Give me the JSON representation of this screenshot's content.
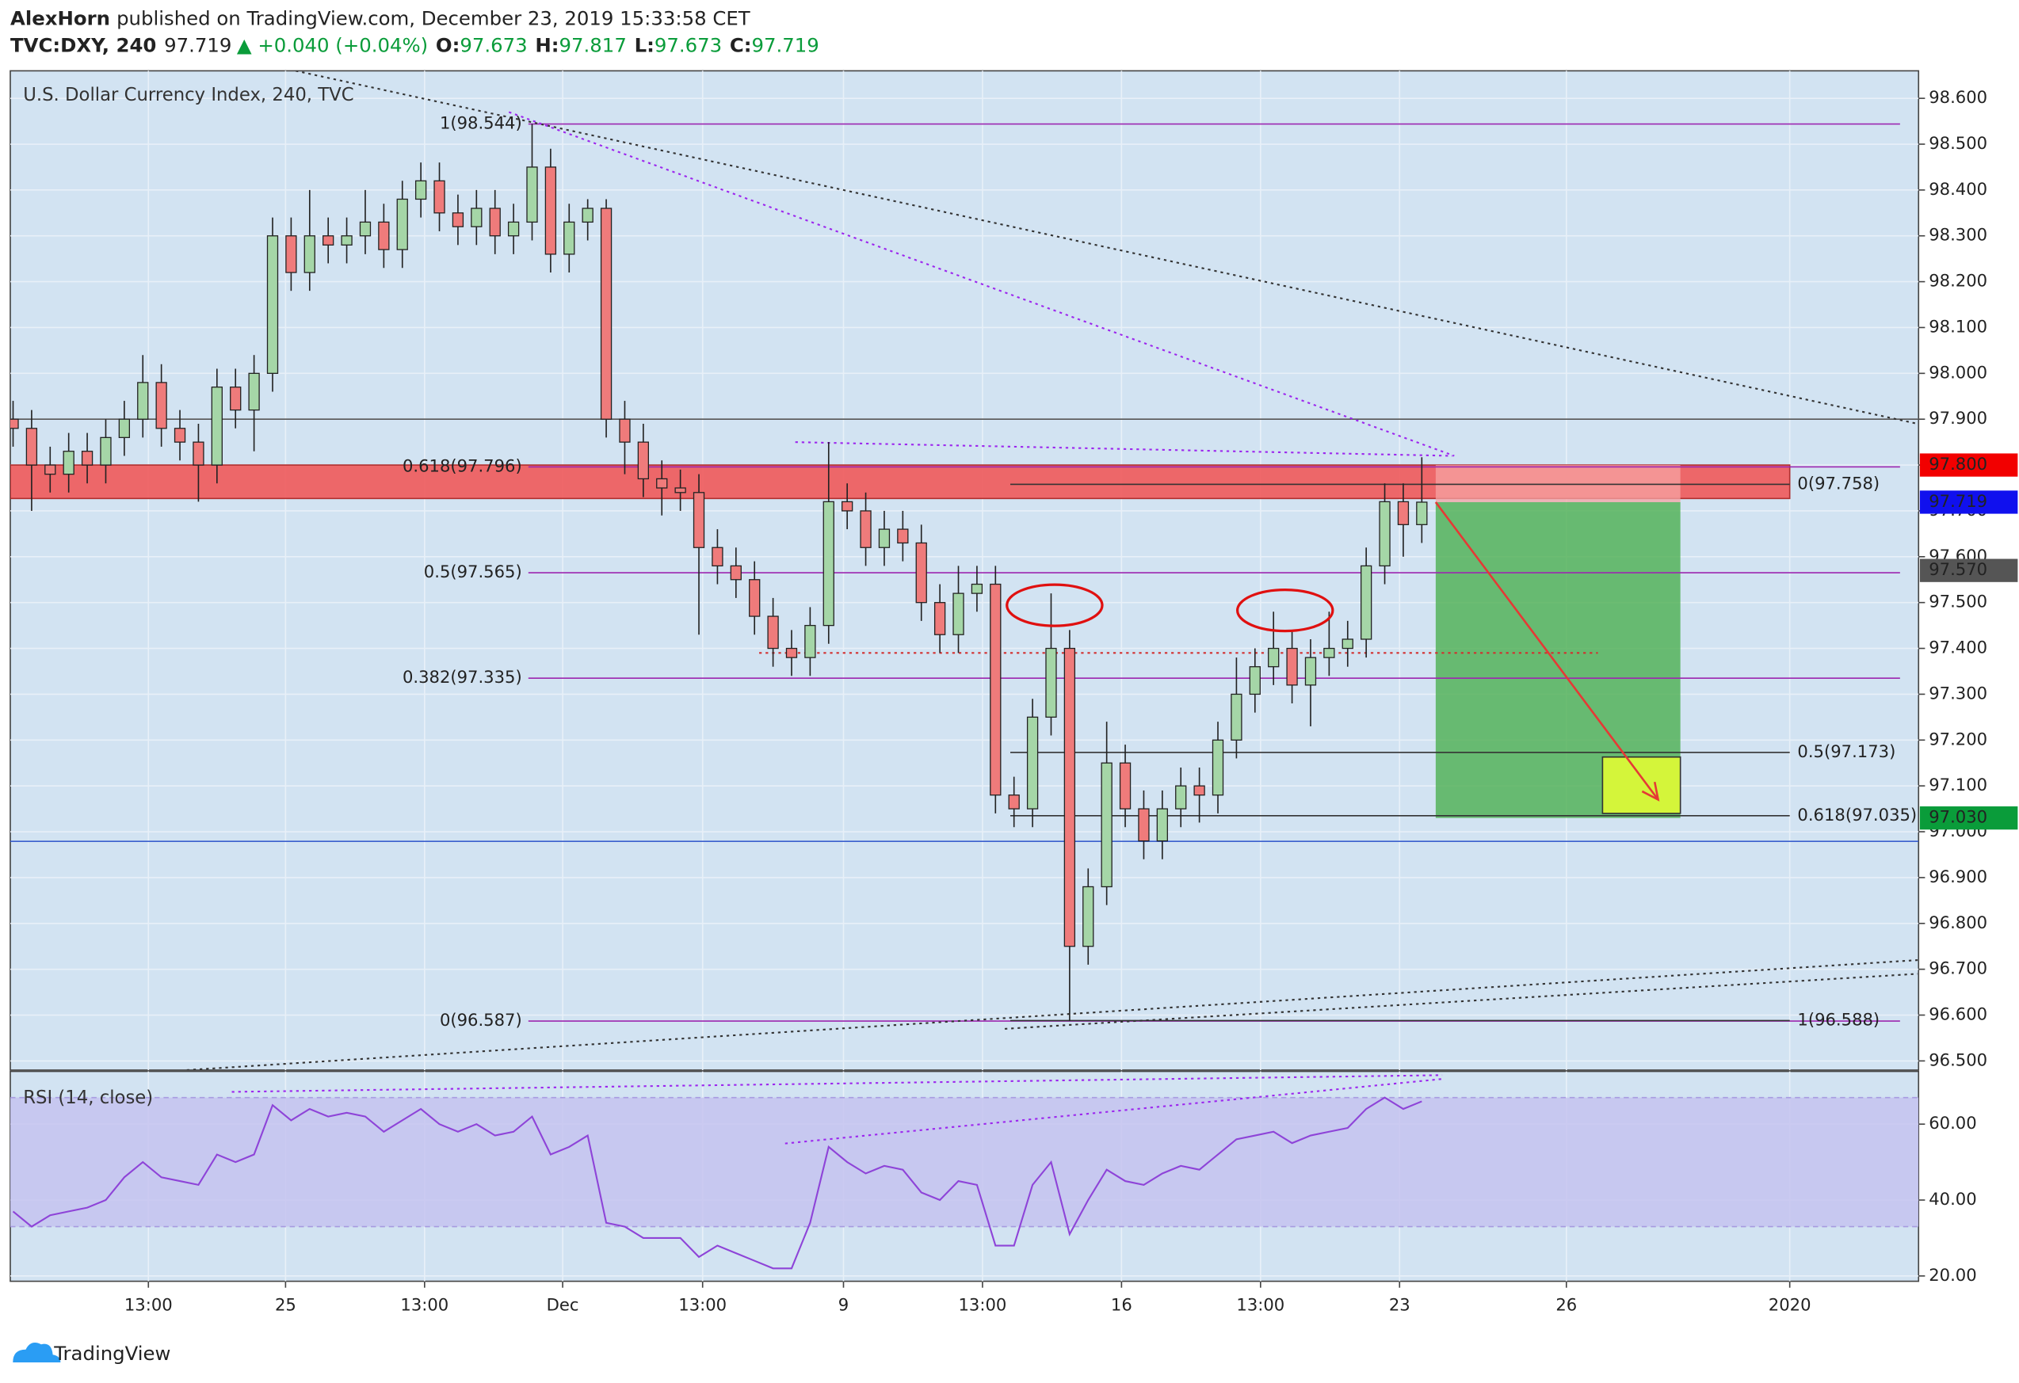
{
  "header": {
    "author": "AlexHorn",
    "published": "published on TradingView.com, December 23, 2019 15:33:58 CET",
    "symbol": "TVC:DXY, 240",
    "last": "97.719",
    "change": "▲ +0.040 (+0.04%)",
    "o_label": "O:",
    "o": "97.673",
    "h_label": "H:",
    "h": "97.817",
    "l_label": "L:",
    "l": "97.673",
    "c_label": "C:",
    "c": "97.719"
  },
  "footer": {
    "brand": "TradingView"
  },
  "chart_data": [
    {
      "type": "candlestick",
      "title": "U.S. Dollar Currency Index, 240, TVC",
      "x": [
        0,
        2,
        4,
        6,
        8,
        10,
        12,
        14,
        16,
        18,
        20,
        22,
        24,
        26,
        28,
        30,
        32,
        34,
        36,
        38,
        40,
        42,
        44,
        46,
        48,
        50,
        52,
        54,
        56,
        58,
        60,
        62,
        64,
        66,
        68,
        70,
        72,
        74,
        76,
        78,
        80,
        82,
        84,
        86,
        88,
        90,
        92,
        94,
        96,
        98,
        100,
        102,
        104,
        106,
        108,
        110,
        112,
        114,
        116,
        118,
        120,
        122,
        124,
        126,
        128,
        130,
        132,
        134,
        136,
        138,
        140,
        142,
        144,
        146,
        148,
        150,
        152
      ],
      "open": [
        97.9,
        97.88,
        97.8,
        97.78,
        97.83,
        97.8,
        97.86,
        97.9,
        97.98,
        97.88,
        97.85,
        97.8,
        97.97,
        97.92,
        98.0,
        98.3,
        98.22,
        98.3,
        98.28,
        98.3,
        98.33,
        98.27,
        98.38,
        98.42,
        98.35,
        98.32,
        98.36,
        98.3,
        98.33,
        98.45,
        98.26,
        98.33,
        98.36,
        97.9,
        97.85,
        97.77,
        97.75,
        97.74,
        97.62,
        97.58,
        97.55,
        97.47,
        97.4,
        97.38,
        97.45,
        97.72,
        97.7,
        97.62,
        97.66,
        97.63,
        97.5,
        97.43,
        97.52,
        97.54,
        97.08,
        97.05,
        97.25,
        97.4,
        96.75,
        96.88,
        97.15,
        97.05,
        96.98,
        97.05,
        97.1,
        97.08,
        97.2,
        97.3,
        97.36,
        97.4,
        97.32,
        97.38,
        97.4,
        97.42,
        97.58,
        97.72,
        97.67
      ],
      "high": [
        97.94,
        97.92,
        97.84,
        97.87,
        97.87,
        97.9,
        97.94,
        98.04,
        98.02,
        97.92,
        97.89,
        98.01,
        98.01,
        98.04,
        98.34,
        98.34,
        98.4,
        98.34,
        98.34,
        98.4,
        98.37,
        98.42,
        98.46,
        98.46,
        98.39,
        98.4,
        98.4,
        98.37,
        98.544,
        98.49,
        98.37,
        98.38,
        98.38,
        97.94,
        97.89,
        97.81,
        97.79,
        97.78,
        97.66,
        97.62,
        97.59,
        97.51,
        97.44,
        97.49,
        97.85,
        97.76,
        97.74,
        97.7,
        97.7,
        97.67,
        97.54,
        97.58,
        97.58,
        97.58,
        97.12,
        97.29,
        97.52,
        97.44,
        96.92,
        97.24,
        97.19,
        97.09,
        97.09,
        97.14,
        97.14,
        97.24,
        97.38,
        97.4,
        97.48,
        97.44,
        97.42,
        97.48,
        97.46,
        97.62,
        97.76,
        97.76,
        97.817
      ],
      "low": [
        97.84,
        97.7,
        97.74,
        97.74,
        97.76,
        97.76,
        97.82,
        97.86,
        97.84,
        97.81,
        97.72,
        97.76,
        97.88,
        97.83,
        97.96,
        98.18,
        98.18,
        98.24,
        98.24,
        98.26,
        98.23,
        98.23,
        98.34,
        98.31,
        98.28,
        98.28,
        98.26,
        98.26,
        98.29,
        98.22,
        98.22,
        98.29,
        97.86,
        97.78,
        97.73,
        97.69,
        97.7,
        97.43,
        97.54,
        97.51,
        97.43,
        97.36,
        97.34,
        97.34,
        97.41,
        97.66,
        97.58,
        97.58,
        97.59,
        97.46,
        97.39,
        97.39,
        97.48,
        97.04,
        97.01,
        97.01,
        97.21,
        96.588,
        96.71,
        96.84,
        97.01,
        96.94,
        96.94,
        97.01,
        97.02,
        97.04,
        97.16,
        97.26,
        97.32,
        97.28,
        97.23,
        97.34,
        97.36,
        97.38,
        97.54,
        97.6,
        97.63
      ],
      "close": [
        97.88,
        97.8,
        97.78,
        97.83,
        97.8,
        97.86,
        97.9,
        97.98,
        97.88,
        97.85,
        97.8,
        97.97,
        97.92,
        98.0,
        98.3,
        98.22,
        98.3,
        98.28,
        98.3,
        98.33,
        98.27,
        98.38,
        98.42,
        98.35,
        98.32,
        98.36,
        98.3,
        98.33,
        98.45,
        98.26,
        98.33,
        98.36,
        97.9,
        97.85,
        97.77,
        97.75,
        97.74,
        97.62,
        97.58,
        97.55,
        97.47,
        97.4,
        97.38,
        97.45,
        97.72,
        97.7,
        97.62,
        97.66,
        97.63,
        97.5,
        97.43,
        97.52,
        97.54,
        97.08,
        97.05,
        97.25,
        97.4,
        96.75,
        96.88,
        97.15,
        97.05,
        96.98,
        97.05,
        97.1,
        97.08,
        97.2,
        97.3,
        97.36,
        97.4,
        97.32,
        97.38,
        97.4,
        97.42,
        97.58,
        97.72,
        97.67,
        97.719
      ],
      "up_color": "#a5d6a7",
      "down_color": "#ef7b7b",
      "grid": true,
      "xlim": [
        -0.3,
        205.6
      ],
      "ylim": [
        96.48,
        98.66
      ],
      "xticks": [
        {
          "value": 14.6,
          "label": "13:00"
        },
        {
          "value": 29.4,
          "label": "25"
        },
        {
          "value": 44.4,
          "label": "13:00"
        },
        {
          "value": 59.3,
          "label": "Dec"
        },
        {
          "value": 74.4,
          "label": "13:00"
        },
        {
          "value": 89.6,
          "label": "9"
        },
        {
          "value": 104.6,
          "label": "13:00"
        },
        {
          "value": 119.6,
          "label": "16"
        },
        {
          "value": 134.6,
          "label": "13:00"
        },
        {
          "value": 149.6,
          "label": "23"
        },
        {
          "value": 167.6,
          "label": "26"
        },
        {
          "value": 191.7,
          "label": "2020"
        }
      ],
      "yticks": [
        {
          "value": 96.5,
          "label": "96.500"
        },
        {
          "value": 96.6,
          "label": "96.600"
        },
        {
          "value": 96.7,
          "label": "96.700"
        },
        {
          "value": 96.8,
          "label": "96.800"
        },
        {
          "value": 96.9,
          "label": "96.900"
        },
        {
          "value": 97.0,
          "label": "97.000"
        },
        {
          "value": 97.1,
          "label": "97.100"
        },
        {
          "value": 97.2,
          "label": "97.200"
        },
        {
          "value": 97.3,
          "label": "97.300"
        },
        {
          "value": 97.4,
          "label": "97.400"
        },
        {
          "value": 97.5,
          "label": "97.500"
        },
        {
          "value": 97.6,
          "label": "97.600"
        },
        {
          "value": 97.7,
          "label": "97.700"
        },
        {
          "value": 97.8,
          "label": "97.800"
        },
        {
          "value": 97.9,
          "label": "97.900"
        },
        {
          "value": 98.0,
          "label": "98.000"
        },
        {
          "value": 98.1,
          "label": "98.100"
        },
        {
          "value": 98.2,
          "label": "98.200"
        },
        {
          "value": 98.3,
          "label": "98.300"
        },
        {
          "value": 98.4,
          "label": "98.400"
        },
        {
          "value": 98.5,
          "label": "98.500"
        },
        {
          "value": 98.6,
          "label": "98.600"
        }
      ],
      "zone": {
        "x": [
          -0.3,
          191.7
        ],
        "y": [
          97.727,
          97.8
        ],
        "color": "#f0595a"
      },
      "hlines": [
        {
          "value": 97.9,
          "color": "#555555"
        },
        {
          "value": 96.979,
          "color": "#3a5fcd"
        }
      ],
      "fib_left": {
        "x": [
          55.6,
          203.6
        ],
        "color": "#9c27b0",
        "levels": [
          {
            "value": 98.544,
            "label": "1(98.544)"
          },
          {
            "value": 97.796,
            "label": "0.618(97.796)"
          },
          {
            "value": 97.565,
            "label": "0.5(97.565)"
          },
          {
            "value": 97.335,
            "label": "0.382(97.335)"
          },
          {
            "value": 96.587,
            "label": "0(96.587)"
          }
        ]
      },
      "fib_right": {
        "x": [
          107.6,
          191.7
        ],
        "color": "#333333",
        "levels": [
          {
            "value": 97.758,
            "label": "0(97.758)"
          },
          {
            "value": 97.173,
            "label": "0.5(97.173)"
          },
          {
            "value": 97.035,
            "label": "0.618(97.035)"
          },
          {
            "value": 96.588,
            "label": "1(96.588)"
          }
        ]
      },
      "trendlines": [
        {
          "points": [
            [
              30.5,
              98.66
            ],
            [
              205.5,
              97.89
            ]
          ],
          "color": "#333333"
        },
        {
          "points": [
            [
              53.5,
              98.57
            ],
            [
              155.5,
              97.82
            ]
          ],
          "color": "#9c27ee"
        },
        {
          "points": [
            [
              84.4,
              97.85
            ],
            [
              155.3,
              97.82
            ]
          ],
          "color": "#9c27ee"
        },
        {
          "points": [
            [
              18.75,
              96.48
            ],
            [
              205.5,
              96.72
            ]
          ],
          "color": "#333333"
        },
        {
          "points": [
            [
              107,
              96.57
            ],
            [
              205.5,
              96.69
            ]
          ],
          "color": "#333333"
        },
        {
          "points": [
            [
              80.5,
              97.39
            ],
            [
              171,
              97.39
            ]
          ],
          "color": "#d32f2f"
        }
      ],
      "position": {
        "x": [
          153.5,
          179.9
        ],
        "entry": 97.719,
        "stop": 97.8,
        "target": 97.03
      },
      "target_box": {
        "x": [
          171.5,
          179.9
        ],
        "y": [
          97.04,
          97.163
        ],
        "color": "#d4f53a"
      },
      "arrow": {
        "points": [
          [
            153.5,
            97.719
          ],
          [
            177.5,
            97.07
          ]
        ],
        "color": "#e53935"
      },
      "price_tags": [
        {
          "value": 97.8,
          "label": "97.800",
          "color": "#f20000"
        },
        {
          "value": 97.719,
          "label": "97.719",
          "color": "#1010ee"
        },
        {
          "value": 97.57,
          "label": "97.570",
          "color": "#555555"
        },
        {
          "value": 97.03,
          "label": "97.030",
          "color": "#0a9c3a"
        }
      ]
    },
    {
      "type": "line",
      "title": "RSI (14, close)",
      "color": "#8e44d8",
      "x": [
        0,
        2,
        4,
        6,
        8,
        10,
        12,
        14,
        16,
        18,
        20,
        22,
        24,
        26,
        28,
        30,
        32,
        34,
        36,
        38,
        40,
        42,
        44,
        46,
        48,
        50,
        52,
        54,
        56,
        58,
        60,
        62,
        64,
        66,
        68,
        70,
        72,
        74,
        76,
        78,
        80,
        82,
        84,
        86,
        88,
        90,
        92,
        94,
        96,
        98,
        100,
        102,
        104,
        106,
        108,
        110,
        112,
        114,
        116,
        118,
        120,
        122,
        124,
        126,
        128,
        130,
        132,
        134,
        136,
        138,
        140,
        142,
        144,
        146,
        148,
        150,
        152
      ],
      "values": [
        37,
        33,
        36,
        37,
        38,
        40,
        46,
        50,
        46,
        45,
        44,
        52,
        50,
        52,
        65,
        61,
        64,
        62,
        63,
        62,
        58,
        61,
        64,
        60,
        58,
        60,
        57,
        58,
        62,
        52,
        54,
        57,
        34,
        33,
        30,
        30,
        30,
        25,
        28,
        26,
        24,
        22,
        22,
        34,
        54,
        50,
        47,
        49,
        48,
        42,
        40,
        45,
        44,
        28,
        28,
        44,
        50,
        31,
        40,
        48,
        45,
        44,
        47,
        49,
        48,
        52,
        56,
        57,
        58,
        55,
        57,
        58,
        59,
        64,
        67,
        64,
        66
      ],
      "xlim": [
        -0.3,
        205.6
      ],
      "ylim": [
        18.6,
        73.9
      ],
      "band": [
        33,
        67
      ],
      "yticks": [
        {
          "value": 20,
          "label": "20.00"
        },
        {
          "value": 40,
          "label": "40.00"
        },
        {
          "value": 60,
          "label": "60.00"
        }
      ],
      "trendlines": [
        {
          "points": [
            [
              23.6,
              68.5
            ],
            [
              154.2,
              72.9
            ]
          ],
          "color": "#9c27ee"
        },
        {
          "points": [
            [
              83.3,
              54.9
            ],
            [
              154.2,
              71.9
            ]
          ],
          "color": "#9c27ee"
        }
      ]
    }
  ]
}
